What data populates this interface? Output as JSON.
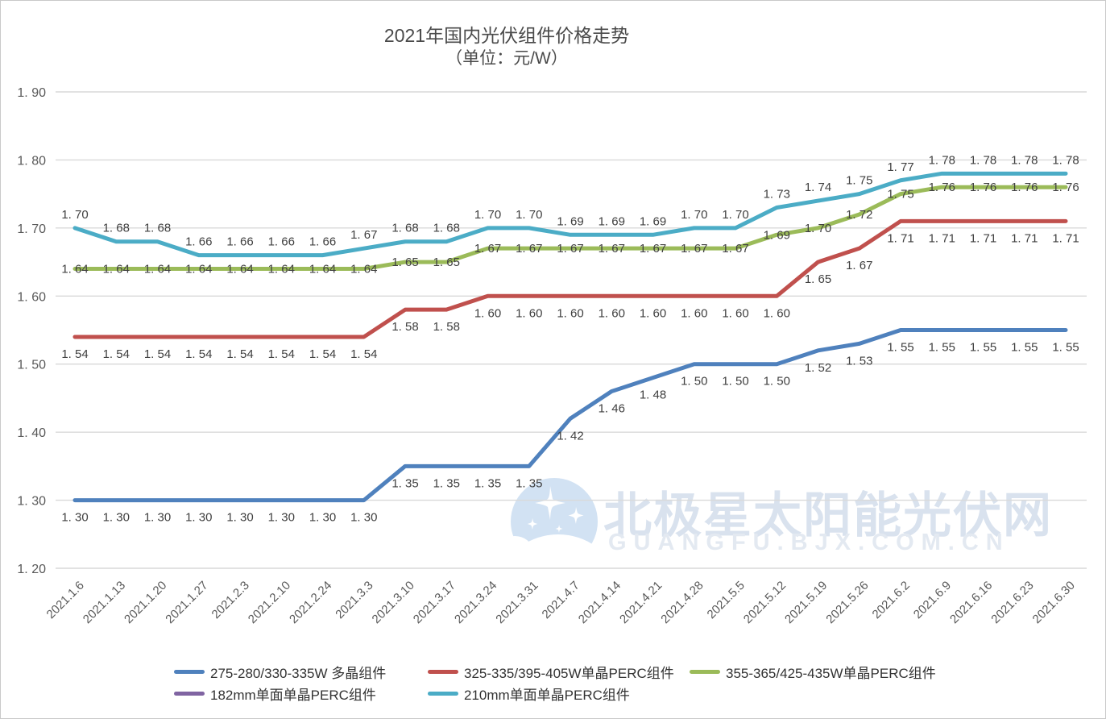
{
  "title": "2021年国内光伏组件价格走势",
  "subtitle": "（单位：元/W）",
  "watermark": {
    "brand": "北极星太阳能光伏网",
    "url_text": "GUANGFU.BJX.COM.CN",
    "color": "#d9e2ee",
    "logo_color": "#c7dbf0"
  },
  "chart_data": {
    "type": "line",
    "title": "2021年国内光伏组件价格走势",
    "subtitle": "（单位：元/W）",
    "x": [
      "2021.1.6",
      "2021.1.13",
      "2021.1.20",
      "2021.1.27",
      "2021.2.3",
      "2021.2.10",
      "2021.2.24",
      "2021.3.3",
      "2021.3.10",
      "2021.3.17",
      "2021.3.24",
      "2021.3.31",
      "2021.4.7",
      "2021.4.14",
      "2021.4.21",
      "2021.4.28",
      "2021.5.5",
      "2021.5.12",
      "2021.5.19",
      "2021.5.26",
      "2021.6.2",
      "2021.6.9",
      "2021.6.16",
      "2021.6.23",
      "2021.6.30"
    ],
    "series": [
      {
        "name": "275-280/330-335W 多晶组件",
        "color": "#4F81BD",
        "label_position": "below",
        "values": [
          1.3,
          1.3,
          1.3,
          1.3,
          1.3,
          1.3,
          1.3,
          1.3,
          1.35,
          1.35,
          1.35,
          1.35,
          1.42,
          1.46,
          1.48,
          1.5,
          1.5,
          1.5,
          1.52,
          1.53,
          1.55,
          1.55,
          1.55,
          1.55,
          1.55
        ]
      },
      {
        "name": "325-335/395-405W单晶PERC组件",
        "color": "#C0504D",
        "label_position": "below",
        "values": [
          1.54,
          1.54,
          1.54,
          1.54,
          1.54,
          1.54,
          1.54,
          1.54,
          1.58,
          1.58,
          1.6,
          1.6,
          1.6,
          1.6,
          1.6,
          1.6,
          1.6,
          1.6,
          1.65,
          1.67,
          1.71,
          1.71,
          1.71,
          1.71,
          1.71
        ]
      },
      {
        "name": "355-365/425-435W单晶PERC组件",
        "color": "#9BBB59",
        "label_position": "center",
        "values": [
          1.64,
          1.64,
          1.64,
          1.64,
          1.64,
          1.64,
          1.64,
          1.64,
          1.65,
          1.65,
          1.67,
          1.67,
          1.67,
          1.67,
          1.67,
          1.67,
          1.67,
          1.69,
          1.7,
          1.72,
          1.75,
          1.76,
          1.76,
          1.76,
          1.76
        ]
      },
      {
        "name": "182mm单面单晶PERC组件",
        "color": "#8064A2",
        "label_position": "center",
        "values": []
      },
      {
        "name": "210mm单面单晶PERC组件",
        "color": "#4BACC6",
        "label_position": "above",
        "values": [
          1.7,
          1.68,
          1.68,
          1.66,
          1.66,
          1.66,
          1.66,
          1.67,
          1.68,
          1.68,
          1.7,
          1.7,
          1.69,
          1.69,
          1.69,
          1.7,
          1.7,
          1.73,
          1.74,
          1.75,
          1.77,
          1.78,
          1.78,
          1.78,
          1.78
        ]
      }
    ],
    "ylim": [
      1.2,
      1.9
    ],
    "yticks": [
      1.2,
      1.3,
      1.4,
      1.5,
      1.6,
      1.7,
      1.8,
      1.9
    ],
    "grid": true,
    "grid_color": "#d9d9d9",
    "legend_position": "bottom"
  }
}
